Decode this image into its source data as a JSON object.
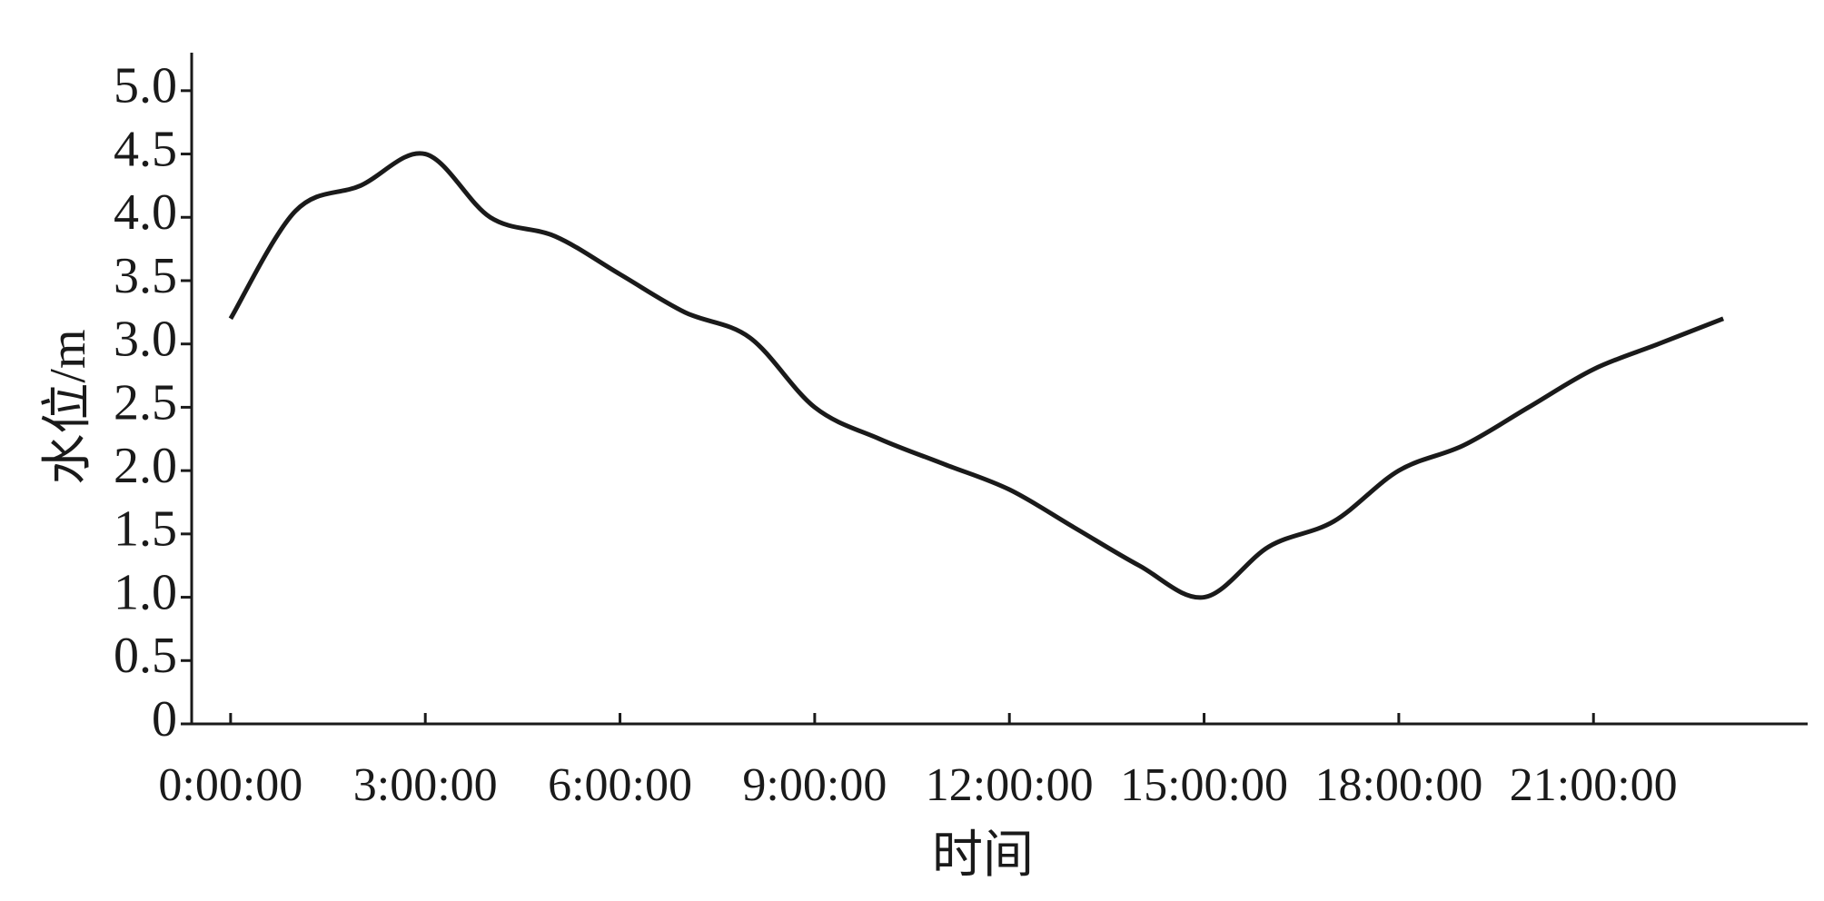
{
  "chart_data": {
    "type": "line",
    "x_label": "时间",
    "y_label": "水位/m",
    "x": [
      0,
      1,
      2,
      3,
      4,
      5,
      6,
      7,
      8,
      9,
      10,
      11,
      12,
      13,
      14,
      15,
      16,
      17,
      18,
      19,
      20,
      21,
      22,
      23
    ],
    "series": [
      {
        "name": "水位",
        "color": "#1a1a1a",
        "values": [
          3.2,
          4.05,
          4.25,
          4.5,
          4.0,
          3.85,
          3.55,
          3.25,
          3.05,
          2.5,
          2.25,
          2.05,
          1.85,
          1.55,
          1.25,
          1.0,
          1.4,
          1.6,
          2.0,
          2.2,
          2.5,
          2.8,
          3.0,
          3.2
        ]
      }
    ],
    "xlim": [
      -0.6,
      24.3
    ],
    "xticks": [
      {
        "value": 0,
        "label": "0:00:00"
      },
      {
        "value": 3,
        "label": "3:00:00"
      },
      {
        "value": 6,
        "label": "6:00:00"
      },
      {
        "value": 9,
        "label": "9:00:00"
      },
      {
        "value": 12,
        "label": "12:00:00"
      },
      {
        "value": 15,
        "label": "15:00:00"
      },
      {
        "value": 18,
        "label": "18:00:00"
      },
      {
        "value": 21,
        "label": "21:00:00"
      }
    ],
    "ylim": [
      0,
      5.3
    ],
    "yticks": [
      0,
      {
        "value": 0.5,
        "label": "0.5"
      },
      {
        "value": 1,
        "label": "1.0"
      },
      {
        "value": 1.5,
        "label": "1.5"
      },
      {
        "value": 2,
        "label": "2.0"
      },
      {
        "value": 2.5,
        "label": "2.5"
      },
      {
        "value": 3,
        "label": "3.0"
      },
      {
        "value": 3.5,
        "label": "3.5"
      },
      {
        "value": 4,
        "label": "4.0"
      },
      {
        "value": 4.5,
        "label": "4.5"
      },
      {
        "value": 5,
        "label": "5.0"
      }
    ],
    "grid": false
  }
}
